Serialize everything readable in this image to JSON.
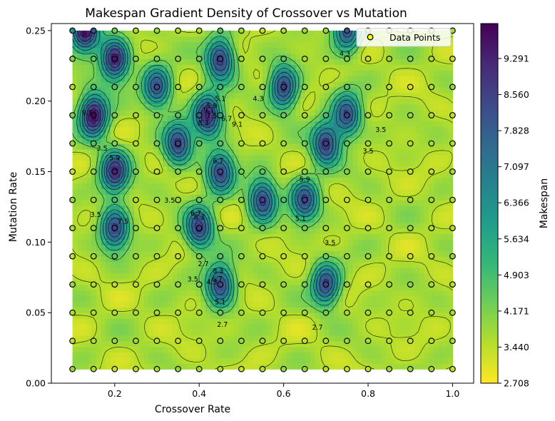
{
  "chart_data": {
    "type": "heatmap",
    "title": "Makespan Gradient Density of Crossover vs Mutation",
    "xlabel": "Crossover Rate",
    "ylabel": "Mutation Rate",
    "xlim": [
      0.05,
      1.05
    ],
    "ylim": [
      0.0,
      0.255
    ],
    "xticks": [
      0.2,
      0.4,
      0.6,
      0.8,
      1.0
    ],
    "xtick_labels": [
      "0.2",
      "0.4",
      "0.6",
      "0.8",
      "1.0"
    ],
    "yticks": [
      0.0,
      0.05,
      0.1,
      0.15,
      0.2,
      0.25
    ],
    "ytick_labels": [
      "0.00",
      "0.05",
      "0.10",
      "0.15",
      "0.20",
      "0.25"
    ],
    "colorbar": {
      "label": "Makespan",
      "min": 2.708,
      "max": 10.0,
      "ticks": [
        2.708,
        3.44,
        4.171,
        4.903,
        5.634,
        6.366,
        7.097,
        7.828,
        8.56,
        9.291
      ],
      "tick_labels": [
        "2.708",
        "3.440",
        "4.171",
        "4.903",
        "5.634",
        "6.366",
        "7.097",
        "7.828",
        "8.560",
        "9.291"
      ],
      "colors": [
        "#fde725",
        "#b5de2b",
        "#6ece58",
        "#35b779",
        "#1f9e89",
        "#26828e",
        "#31688e",
        "#3e4989",
        "#482878",
        "#440154"
      ]
    },
    "legend": {
      "position": "top-right",
      "entries": [
        "Data Points"
      ]
    },
    "grid_x": [
      0.1,
      0.15,
      0.2,
      0.25,
      0.3,
      0.35,
      0.4,
      0.45,
      0.5,
      0.55,
      0.6,
      0.65,
      0.7,
      0.75,
      0.8,
      0.85,
      0.9,
      0.95,
      1.0
    ],
    "grid_y": [
      0.01,
      0.03,
      0.05,
      0.07,
      0.09,
      0.11,
      0.13,
      0.15,
      0.17,
      0.19,
      0.21,
      0.23,
      0.25
    ],
    "baseline_makespan": 3.6,
    "peaks": [
      {
        "x": 0.15,
        "y": 0.19,
        "makespan": 10.0
      },
      {
        "x": 0.2,
        "y": 0.23,
        "makespan": 9.5
      },
      {
        "x": 0.13,
        "y": 0.25,
        "makespan": 9.8
      },
      {
        "x": 0.2,
        "y": 0.15,
        "makespan": 8.9
      },
      {
        "x": 0.2,
        "y": 0.11,
        "makespan": 8.5
      },
      {
        "x": 0.3,
        "y": 0.21,
        "makespan": 8.2
      },
      {
        "x": 0.35,
        "y": 0.17,
        "makespan": 8.5
      },
      {
        "x": 0.4,
        "y": 0.11,
        "makespan": 8.6
      },
      {
        "x": 0.45,
        "y": 0.07,
        "makespan": 8.6
      },
      {
        "x": 0.45,
        "y": 0.15,
        "makespan": 8.4
      },
      {
        "x": 0.42,
        "y": 0.19,
        "makespan": 9.3
      },
      {
        "x": 0.45,
        "y": 0.23,
        "makespan": 8.9
      },
      {
        "x": 0.55,
        "y": 0.13,
        "makespan": 8.7
      },
      {
        "x": 0.6,
        "y": 0.21,
        "makespan": 8.8
      },
      {
        "x": 0.65,
        "y": 0.13,
        "makespan": 8.3
      },
      {
        "x": 0.7,
        "y": 0.17,
        "makespan": 8.8
      },
      {
        "x": 0.75,
        "y": 0.19,
        "makespan": 8.4
      },
      {
        "x": 0.7,
        "y": 0.07,
        "makespan": 8.5
      },
      {
        "x": 0.75,
        "y": 0.25,
        "makespan": 8.2
      }
    ],
    "contour_levels": [
      2.7,
      3.5,
      4.3,
      5.1,
      5.9,
      6.7,
      7.5,
      8.3,
      9.1
    ],
    "contour_labels": [
      {
        "x": 0.41,
        "y": 0.083,
        "text": "2.7"
      },
      {
        "x": 0.455,
        "y": 0.04,
        "text": "2.7"
      },
      {
        "x": 0.68,
        "y": 0.038,
        "text": "2.7"
      },
      {
        "x": 0.155,
        "y": 0.118,
        "text": "3.5"
      },
      {
        "x": 0.17,
        "y": 0.165,
        "text": "3.5"
      },
      {
        "x": 0.33,
        "y": 0.128,
        "text": "3.5"
      },
      {
        "x": 0.385,
        "y": 0.072,
        "text": "3.5"
      },
      {
        "x": 0.71,
        "y": 0.098,
        "text": "3.5"
      },
      {
        "x": 0.8,
        "y": 0.163,
        "text": "3.5"
      },
      {
        "x": 0.83,
        "y": 0.178,
        "text": "3.5"
      },
      {
        "x": 0.43,
        "y": 0.07,
        "text": "4.3"
      },
      {
        "x": 0.54,
        "y": 0.2,
        "text": "4.3"
      },
      {
        "x": 0.745,
        "y": 0.232,
        "text": "4.3"
      },
      {
        "x": 0.45,
        "y": 0.2,
        "text": "5.1"
      },
      {
        "x": 0.45,
        "y": 0.056,
        "text": "5.1"
      },
      {
        "x": 0.64,
        "y": 0.115,
        "text": "5.1"
      },
      {
        "x": 0.43,
        "y": 0.195,
        "text": "5.9"
      },
      {
        "x": 0.65,
        "y": 0.143,
        "text": "5.9"
      },
      {
        "x": 0.2,
        "y": 0.158,
        "text": "5.9"
      },
      {
        "x": 0.465,
        "y": 0.186,
        "text": "6.7"
      },
      {
        "x": 0.445,
        "y": 0.156,
        "text": "6.7"
      },
      {
        "x": 0.392,
        "y": 0.119,
        "text": "6.7"
      },
      {
        "x": 0.442,
        "y": 0.072,
        "text": "6.7"
      },
      {
        "x": 0.43,
        "y": 0.188,
        "text": "7.5"
      },
      {
        "x": 0.22,
        "y": 0.113,
        "text": "7.5"
      },
      {
        "x": 0.445,
        "y": 0.078,
        "text": "8.3"
      },
      {
        "x": 0.4,
        "y": 0.116,
        "text": "8.3"
      },
      {
        "x": 0.41,
        "y": 0.183,
        "text": "8.3"
      },
      {
        "x": 0.423,
        "y": 0.192,
        "text": "9.1"
      },
      {
        "x": 0.49,
        "y": 0.182,
        "text": "9.1"
      },
      {
        "x": 0.135,
        "y": 0.19,
        "text": "9.1"
      }
    ]
  }
}
